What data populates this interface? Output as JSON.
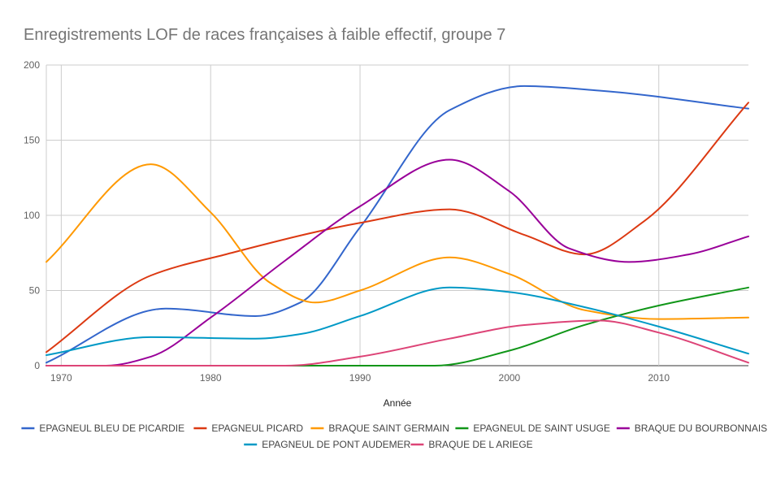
{
  "chart_data": {
    "type": "line",
    "title": "Enregistrements LOF de races françaises à faible effectif, groupe 7",
    "xlabel": "Année",
    "ylabel": "",
    "xlim": [
      1969,
      2016
    ],
    "ylim": [
      0,
      200
    ],
    "xticks": [
      1970,
      1980,
      1990,
      2000,
      2010
    ],
    "yticks": [
      0,
      50,
      100,
      150,
      200
    ],
    "grid": true,
    "legend_position": "bottom",
    "series": [
      {
        "name": "EPAGNEUL BLEU DE PICARDIE",
        "color": "#3366cc",
        "x": [
          1969,
          1977,
          1983,
          1986,
          1990,
          1996,
          2001,
          2006,
          2016
        ],
        "y": [
          2,
          38,
          33,
          42,
          92,
          170,
          186,
          183,
          171
        ]
      },
      {
        "name": "EPAGNEUL PICARD",
        "color": "#dc3912",
        "x": [
          1969,
          1976,
          1981,
          1990,
          1996,
          2001,
          2005,
          2009,
          2016
        ],
        "y": [
          9,
          60,
          74,
          95,
          104,
          87,
          74,
          96,
          175
        ]
      },
      {
        "name": "BRAQUE SAINT GERMAIN",
        "color": "#ff9900",
        "x": [
          1969,
          1976,
          1980,
          1984,
          1987,
          1990,
          1996,
          2000,
          2005,
          2010,
          2016
        ],
        "y": [
          69,
          134,
          102,
          55,
          42,
          50,
          72,
          61,
          37,
          31,
          32
        ]
      },
      {
        "name": "EPAGNEUL DE SAINT USUGE",
        "color": "#109618",
        "x": [
          1969,
          1995,
          2000,
          2005,
          2010,
          2016
        ],
        "y": [
          0,
          0,
          10,
          27,
          40,
          52
        ]
      },
      {
        "name": "BRAQUE DU BOURBONNAIS",
        "color": "#990099",
        "x": [
          1969,
          1973,
          1976,
          1980,
          1985,
          1990,
          1996,
          2000,
          2004,
          2008,
          2012,
          2016
        ],
        "y": [
          0,
          0,
          6,
          32,
          70,
          106,
          137,
          116,
          78,
          69,
          74,
          86
        ]
      },
      {
        "name": "EPAGNEUL DE PONT AUDEMER",
        "color": "#0099c6",
        "x": [
          1969,
          1976,
          1983,
          1986,
          1990,
          1996,
          2000,
          2005,
          2010,
          2016
        ],
        "y": [
          7,
          19,
          18,
          21,
          33,
          52,
          49,
          39,
          26,
          8
        ]
      },
      {
        "name": "BRAQUE DE L ARIEGE",
        "color": "#dd4477",
        "x": [
          1969,
          1985,
          1990,
          1996,
          2001,
          2006,
          2010,
          2016
        ],
        "y": [
          0,
          0,
          6,
          18,
          27,
          30,
          22,
          2
        ]
      }
    ]
  }
}
